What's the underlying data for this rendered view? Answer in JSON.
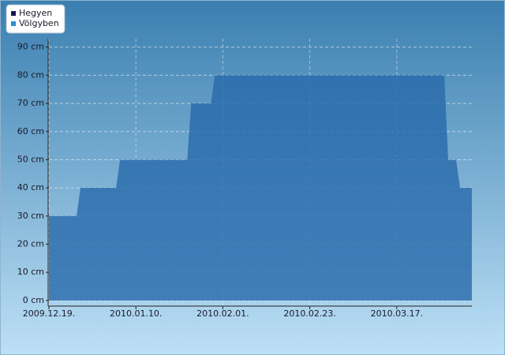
{
  "chart_data": {
    "type": "area",
    "x": [
      "2009-12-19",
      "2009-12-26",
      "2009-12-27",
      "2010-01-05",
      "2010-01-06",
      "2010-01-23",
      "2010-01-24",
      "2010-01-29",
      "2010-01-30",
      "2010-03-29",
      "2010-03-30",
      "2010-04-01",
      "2010-04-02",
      "2010-04-05"
    ],
    "series": [
      {
        "name": "Hegyen",
        "color": "#14145a",
        "values": [
          30,
          30,
          40,
          40,
          50,
          50,
          70,
          70,
          80,
          80,
          50,
          50,
          40,
          40
        ]
      },
      {
        "name": "Völgyben",
        "color": "#2f8fd0",
        "values": [
          30,
          30,
          40,
          40,
          50,
          50,
          70,
          70,
          80,
          80,
          50,
          50,
          40,
          40
        ]
      }
    ],
    "xlim": [
      "2009-12-19",
      "2010-04-05"
    ],
    "xticks": [
      {
        "value": "2009-12-19",
        "label": "2009.12.19."
      },
      {
        "value": "2010-01-10",
        "label": "2010.01.10."
      },
      {
        "value": "2010-02-01",
        "label": "2010.02.01."
      },
      {
        "value": "2010-02-23",
        "label": "2010.02.23."
      },
      {
        "value": "2010-03-17",
        "label": "2010.03.17."
      }
    ],
    "ylim": [
      -2,
      93
    ],
    "yticks": [
      {
        "value": 0,
        "label": "0 cm"
      },
      {
        "value": 10,
        "label": "10 cm"
      },
      {
        "value": 20,
        "label": "20 cm"
      },
      {
        "value": 30,
        "label": "30 cm"
      },
      {
        "value": 40,
        "label": "40 cm"
      },
      {
        "value": 50,
        "label": "50 cm"
      },
      {
        "value": 60,
        "label": "60 cm"
      },
      {
        "value": 70,
        "label": "70 cm"
      },
      {
        "value": 80,
        "label": "80 cm"
      },
      {
        "value": 90,
        "label": "90 cm"
      }
    ],
    "grid": true,
    "legend_position": "top-left"
  }
}
